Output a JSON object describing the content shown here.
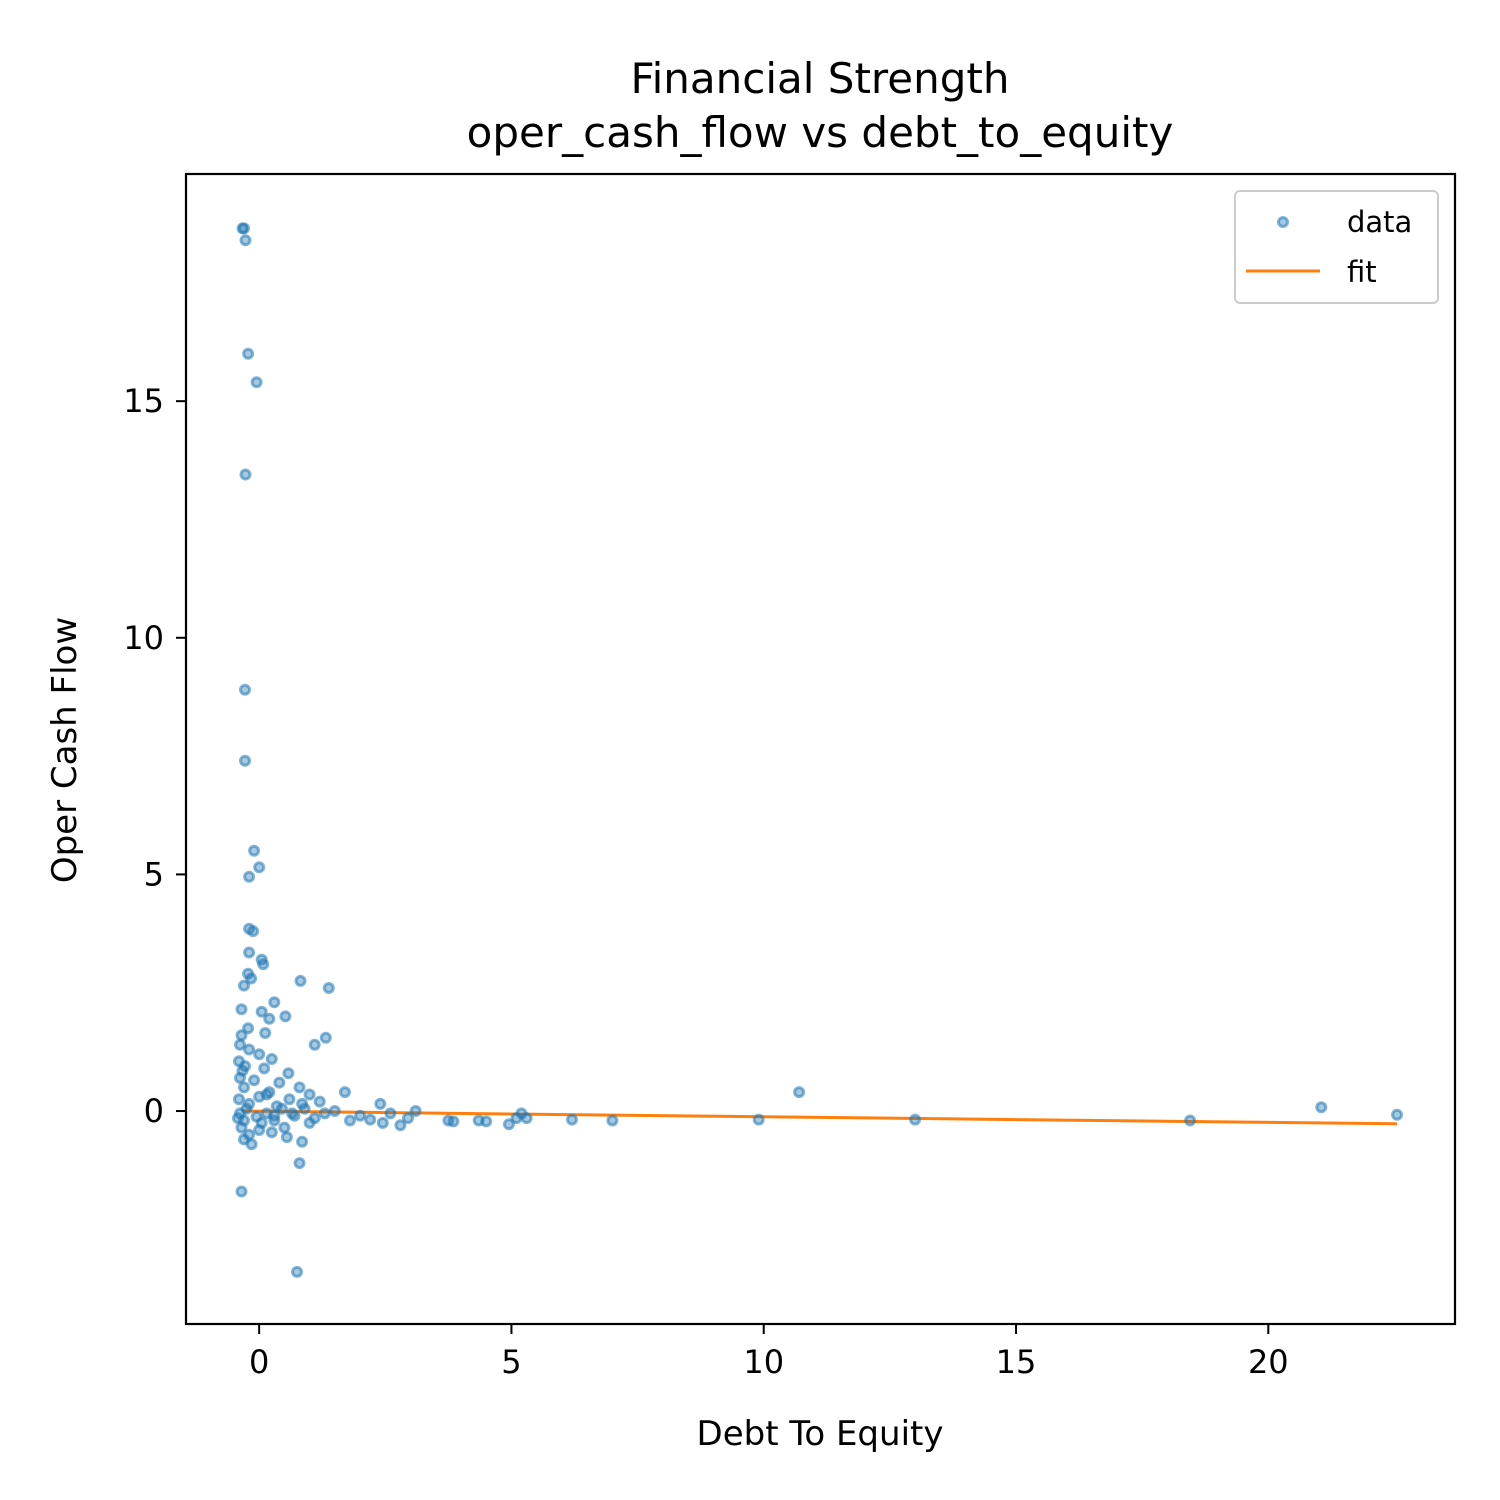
{
  "chart_data": {
    "type": "scatter",
    "title_line1": "Financial Strength",
    "title_line2": "oper_cash_flow vs debt_to_equity",
    "xlabel": "Debt To Equity",
    "ylabel": "Oper Cash Flow",
    "xlim": [
      -1.45,
      23.7
    ],
    "ylim": [
      -4.5,
      19.8
    ],
    "xticks": [
      0,
      5,
      10,
      15,
      20
    ],
    "yticks": [
      0,
      5,
      10,
      15
    ],
    "grid": false,
    "legend": {
      "placement": "top-right",
      "entries": [
        "data",
        "fit"
      ]
    },
    "colors": {
      "data": "#1f77b4",
      "fit": "#ff7f0e"
    },
    "series": [
      {
        "name": "data",
        "kind": "scatter",
        "points": [
          [
            -0.33,
            18.65
          ],
          [
            -0.3,
            18.65
          ],
          [
            -0.27,
            18.4
          ],
          [
            -0.22,
            16.0
          ],
          [
            -0.05,
            15.4
          ],
          [
            -0.27,
            13.45
          ],
          [
            -0.28,
            8.9
          ],
          [
            -0.28,
            7.4
          ],
          [
            -0.1,
            5.5
          ],
          [
            0.0,
            5.15
          ],
          [
            -0.2,
            4.95
          ],
          [
            -0.2,
            3.85
          ],
          [
            -0.12,
            3.8
          ],
          [
            -0.2,
            3.35
          ],
          [
            0.05,
            3.2
          ],
          [
            0.08,
            3.1
          ],
          [
            -0.22,
            2.9
          ],
          [
            -0.16,
            2.8
          ],
          [
            0.82,
            2.75
          ],
          [
            -0.3,
            2.65
          ],
          [
            1.38,
            2.6
          ],
          [
            0.3,
            2.3
          ],
          [
            -0.35,
            2.15
          ],
          [
            0.05,
            2.1
          ],
          [
            0.52,
            2.0
          ],
          [
            -0.22,
            1.75
          ],
          [
            0.2,
            1.95
          ],
          [
            -0.35,
            1.6
          ],
          [
            0.12,
            1.65
          ],
          [
            1.32,
            1.55
          ],
          [
            1.1,
            1.4
          ],
          [
            -0.38,
            1.4
          ],
          [
            -0.2,
            1.3
          ],
          [
            0.0,
            1.2
          ],
          [
            0.25,
            1.1
          ],
          [
            -0.4,
            1.05
          ],
          [
            -0.28,
            0.95
          ],
          [
            0.1,
            0.9
          ],
          [
            0.58,
            0.8
          ],
          [
            -0.38,
            0.7
          ],
          [
            0.4,
            0.6
          ],
          [
            0.8,
            0.5
          ],
          [
            -0.3,
            0.5
          ],
          [
            0.2,
            0.4
          ],
          [
            1.7,
            0.4
          ],
          [
            1.0,
            0.35
          ],
          [
            0.0,
            0.3
          ],
          [
            0.6,
            0.25
          ],
          [
            -0.4,
            0.25
          ],
          [
            1.2,
            0.2
          ],
          [
            -0.2,
            0.15
          ],
          [
            0.35,
            0.1
          ],
          [
            2.4,
            0.15
          ],
          [
            0.9,
            0.05
          ],
          [
            1.5,
            0.0
          ],
          [
            3.1,
            0.0
          ],
          [
            -0.38,
            -0.05
          ],
          [
            0.15,
            -0.05
          ],
          [
            0.7,
            -0.1
          ],
          [
            2.0,
            -0.1
          ],
          [
            2.6,
            -0.05
          ],
          [
            -0.3,
            -0.2
          ],
          [
            0.3,
            -0.2
          ],
          [
            1.1,
            -0.15
          ],
          [
            1.8,
            -0.2
          ],
          [
            2.2,
            -0.18
          ],
          [
            2.95,
            -0.15
          ],
          [
            3.75,
            -0.2
          ],
          [
            3.85,
            -0.22
          ],
          [
            4.35,
            -0.2
          ],
          [
            4.5,
            -0.22
          ],
          [
            5.2,
            -0.05
          ],
          [
            5.1,
            -0.15
          ],
          [
            5.3,
            -0.15
          ],
          [
            -0.35,
            -0.35
          ],
          [
            0.0,
            -0.4
          ],
          [
            0.5,
            -0.35
          ],
          [
            1.0,
            -0.25
          ],
          [
            2.45,
            -0.25
          ],
          [
            2.8,
            -0.3
          ],
          [
            4.95,
            -0.28
          ],
          [
            6.2,
            -0.18
          ],
          [
            7.0,
            -0.2
          ],
          [
            9.9,
            -0.18
          ],
          [
            10.7,
            0.4
          ],
          [
            13.0,
            -0.18
          ],
          [
            18.45,
            -0.2
          ],
          [
            21.05,
            0.08
          ],
          [
            22.55,
            -0.08
          ],
          [
            -0.3,
            -0.6
          ],
          [
            -0.15,
            -0.7
          ],
          [
            0.55,
            -0.55
          ],
          [
            0.85,
            -0.65
          ],
          [
            0.8,
            -1.1
          ],
          [
            -0.35,
            -1.7
          ],
          [
            0.75,
            -3.4
          ],
          [
            -0.2,
            -0.5
          ],
          [
            0.25,
            -0.45
          ],
          [
            -0.42,
            -0.15
          ],
          [
            -0.1,
            0.65
          ],
          [
            0.05,
            -0.25
          ],
          [
            0.45,
            0.05
          ],
          [
            0.65,
            -0.05
          ],
          [
            0.85,
            0.15
          ],
          [
            1.3,
            -0.05
          ],
          [
            -0.25,
            0.05
          ],
          [
            -0.05,
            -0.12
          ],
          [
            0.15,
            0.35
          ],
          [
            -0.33,
            0.85
          ],
          [
            0.3,
            -0.1
          ]
        ]
      },
      {
        "name": "fit",
        "kind": "line",
        "points": [
          [
            -0.33,
            0.0
          ],
          [
            22.55,
            -0.27
          ]
        ]
      }
    ]
  }
}
